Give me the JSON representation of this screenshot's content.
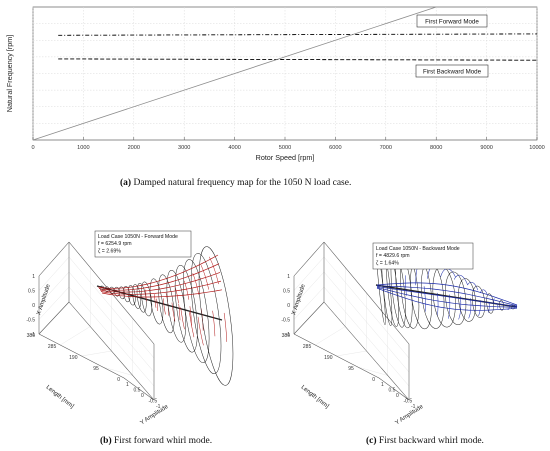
{
  "chart_data": [
    {
      "type": "line",
      "panel": "a",
      "xlabel": "Rotor Speed [rpm]",
      "ylabel": "Natural Frequency [rpm]",
      "xlim": [
        0,
        10000
      ],
      "ylim": [
        0,
        8000
      ],
      "x_ticks": [
        "0",
        "1000",
        "2000",
        "3000",
        "4000",
        "5000",
        "6000",
        "7000",
        "8000",
        "9000",
        "10000"
      ],
      "grid": true,
      "series": [
        {
          "name": "First Forward Mode",
          "style": "dash-dot",
          "color": "#000000",
          "x": [
            500,
            10000
          ],
          "y": [
            6300,
            6380
          ]
        },
        {
          "name": "First Backward Mode",
          "style": "dashed",
          "color": "#000000",
          "x": [
            500,
            10000
          ],
          "y": [
            4880,
            4800
          ]
        },
        {
          "name": "",
          "style": "solid",
          "color": "#8c8c8c",
          "x": [
            0,
            8000
          ],
          "y": [
            0,
            8000
          ]
        }
      ],
      "annotations": [
        "First Forward Mode",
        "First Backward Mode"
      ]
    },
    {
      "type": "3d-line",
      "panel": "b",
      "xlabel": "Y Amplitude",
      "ylabel": "Length [mm]",
      "zlabel": "X Amplitude",
      "x_ticks": [
        "1",
        "0.5",
        "0",
        "-0.5",
        "-1"
      ],
      "y_ticks": [
        "380",
        "285",
        "190",
        "95",
        "0"
      ],
      "z_ticks": [
        "1",
        "0.5",
        "0",
        "-0.5",
        "-1"
      ],
      "legend": [
        "Load Case 1050N - Forward Mode",
        "f = 6254.9 rpm",
        "ζ = 2.69%"
      ]
    },
    {
      "type": "3d-line",
      "panel": "c",
      "xlabel": "Y Amplitude",
      "ylabel": "Length [mm]",
      "zlabel": "X Amplitude",
      "x_ticks": [
        "1",
        "0.5",
        "0",
        "-0.5",
        "-1"
      ],
      "y_ticks": [
        "380",
        "285",
        "190",
        "95",
        "0"
      ],
      "z_ticks": [
        "1",
        "0.5",
        "0",
        "-0.5",
        "-1"
      ],
      "legend": [
        "Load Case 1050N - Backward Mode",
        "f = 4829.6 rpm",
        "ζ = 1.64%"
      ]
    }
  ],
  "captions": {
    "a_label": "(a)",
    "a_text": "Damped natural frequency map for the 1050 N load case.",
    "b_label": "(b)",
    "b_text": "First forward whirl mode.",
    "c_label": "(c)",
    "c_text": "First backward whirl mode."
  },
  "colors": {
    "forward_whirl": "#b01818",
    "backward_whirl": "#1a2aa8",
    "orbit": "#222222"
  }
}
